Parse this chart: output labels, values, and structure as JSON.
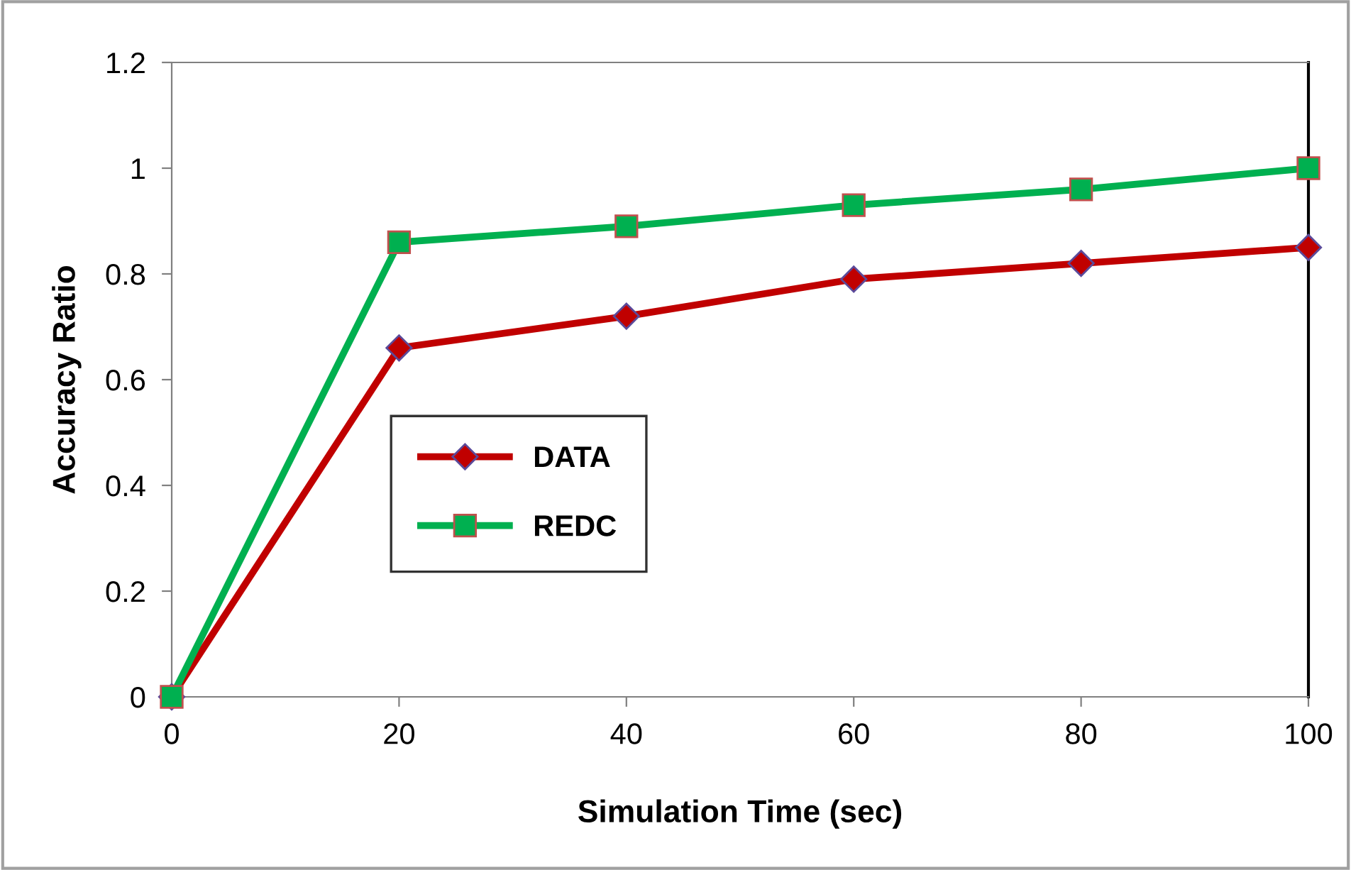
{
  "chart_data": {
    "type": "line",
    "xlabel": "Simulation Time (sec)",
    "ylabel": "Accuracy Ratio",
    "x": [
      0,
      20,
      40,
      60,
      80,
      100
    ],
    "series": [
      {
        "name": "DATA",
        "color": "#c00000",
        "marker": "diamond",
        "values": [
          0,
          0.66,
          0.72,
          0.79,
          0.82,
          0.85
        ]
      },
      {
        "name": "REDC",
        "color": "#00b050",
        "marker": "square",
        "values": [
          0,
          0.86,
          0.89,
          0.93,
          0.96,
          1.0
        ]
      }
    ],
    "xlim": [
      0,
      100
    ],
    "xticks": [
      0,
      20,
      40,
      60,
      80,
      100
    ],
    "ylim": [
      0,
      1.2
    ],
    "yticks": [
      0,
      0.2,
      0.4,
      0.6,
      0.8,
      1,
      1.2
    ],
    "grid": false,
    "legend": "center left",
    "line_style": "solid"
  }
}
